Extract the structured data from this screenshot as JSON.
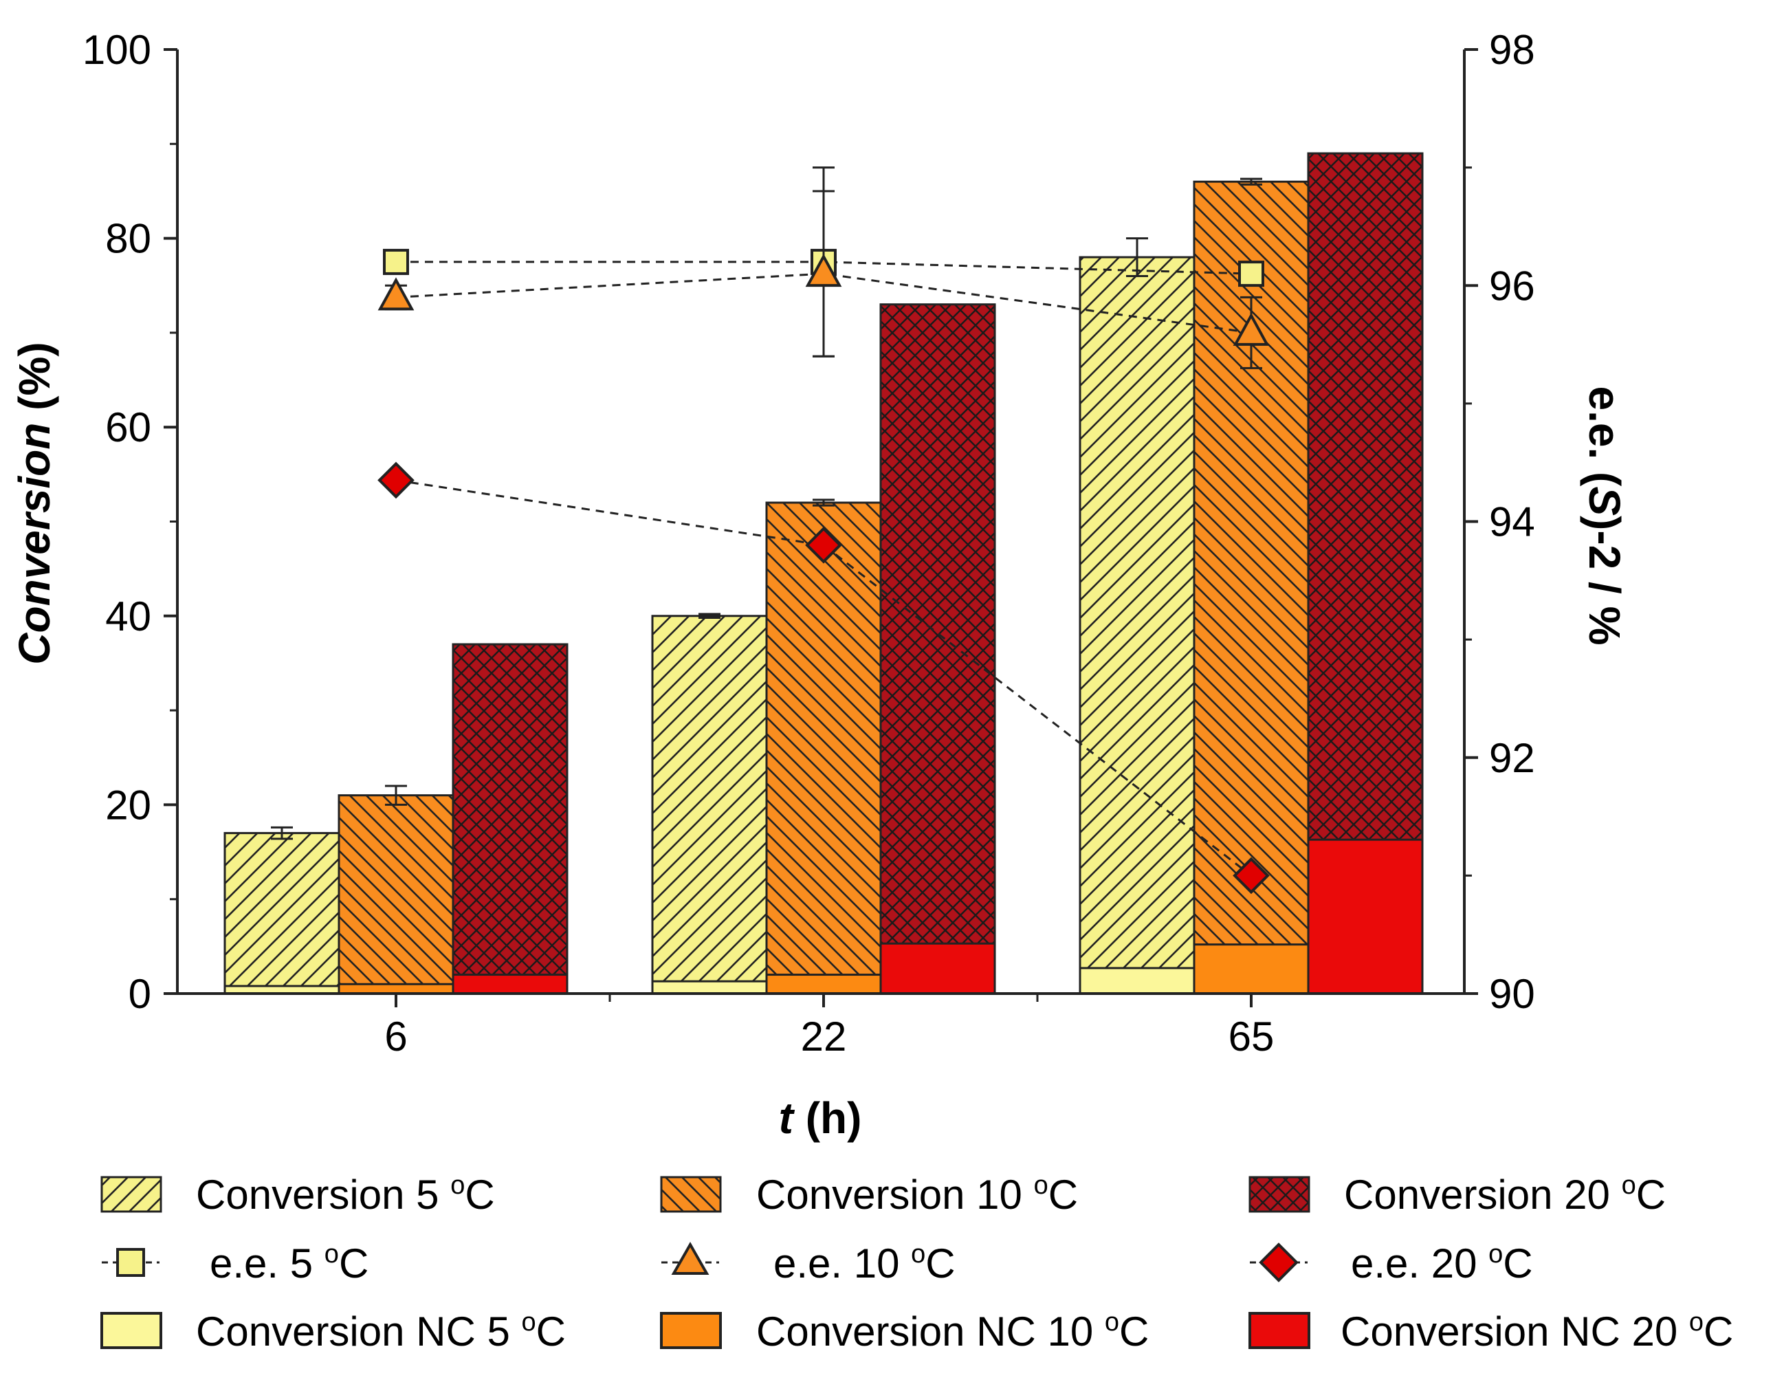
{
  "chart_data": {
    "type": "bar",
    "x_title_var": "t",
    "x_title_unit": "(h)",
    "y_title_main": "Conversion",
    "y_title_unit": "(%)",
    "y2_title_prefix": "e.e. (",
    "y2_title_var": "S",
    "y2_title_suffix": ")-2 / %",
    "categories": [
      "6",
      "22",
      "65"
    ],
    "ylim": [
      0,
      100
    ],
    "y_ticks": [
      "0",
      "20",
      "40",
      "60",
      "80",
      "100"
    ],
    "y2lim": [
      90,
      98
    ],
    "y2_ticks": [
      "90",
      "92",
      "94",
      "96",
      "98"
    ],
    "bar_series": [
      {
        "name": "Conversion 5 °C",
        "color": "#f6f28a",
        "pattern": "diag",
        "values": [
          17,
          40,
          78
        ],
        "errors": [
          0.6,
          0.2,
          2.0
        ],
        "nc_name": "Conversion NC 5 °C",
        "nc_color": "#fbf79a",
        "nc_values": [
          0.8,
          1.3,
          2.7
        ]
      },
      {
        "name": "Conversion 10 °C",
        "color": "#f98d1f",
        "pattern": "anti",
        "values": [
          21,
          52,
          86
        ],
        "errors": [
          1.0,
          0.3,
          0.3
        ],
        "nc_name": "Conversion NC 10 °C",
        "nc_color": "#fc8a12",
        "nc_values": [
          1.0,
          2.0,
          5.2
        ]
      },
      {
        "name": "Conversion 20 °C",
        "color": "#b0121a",
        "pattern": "cross",
        "values": [
          37,
          73,
          89
        ],
        "errors": [
          0,
          0,
          0
        ],
        "nc_name": "Conversion NC 20 °C",
        "nc_color": "#ea0a0a",
        "nc_values": [
          2.0,
          5.3,
          16.3
        ]
      }
    ],
    "ee_series": [
      {
        "name": "e.e. 5 °C",
        "marker": "square",
        "color": "#f6f28a",
        "values": [
          96.2,
          96.2,
          96.1
        ],
        "errors": [
          0,
          0.8,
          0
        ]
      },
      {
        "name": "e.e. 10 °C",
        "marker": "triangle",
        "color": "#f98d1f",
        "values": [
          95.9,
          96.1,
          95.6
        ],
        "errors": [
          0.1,
          0.7,
          0.3
        ]
      },
      {
        "name": "e.e. 20 °C",
        "marker": "diamond",
        "color": "#e00000",
        "values": [
          94.35,
          93.8,
          91.0
        ],
        "errors": [
          0,
          0,
          0
        ]
      }
    ],
    "legend": {
      "row1": [
        "Conversion 5 ",
        "Conversion 10 ",
        "Conversion 20 "
      ],
      "row2": [
        "e.e. 5 ",
        "e.e. 10 ",
        "e.e. 20 "
      ],
      "row3": [
        "Conversion NC 5 ",
        "Conversion NC 10 ",
        "Conversion NC 20 "
      ],
      "degree": "o",
      "unit": "C",
      "placement": "bottom"
    }
  }
}
